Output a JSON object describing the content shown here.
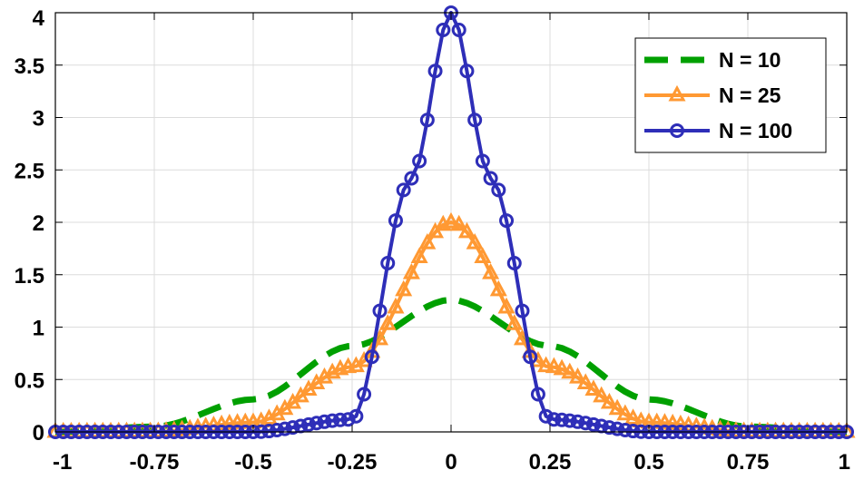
{
  "chart_data": {
    "type": "line",
    "title": "",
    "xlabel": "",
    "ylabel": "",
    "xlim": [
      -1,
      1
    ],
    "ylim": [
      0,
      4
    ],
    "xticks": [
      -1,
      -0.75,
      -0.5,
      -0.25,
      0,
      0.25,
      0.5,
      0.75,
      1
    ],
    "xtick_labels": [
      "-1",
      "-0.75",
      "-0.5",
      "-0.25",
      "0",
      "0.25",
      "0.5",
      "0.75",
      "1"
    ],
    "yticks": [
      0,
      0.5,
      1,
      1.5,
      2,
      2.5,
      3,
      3.5,
      4
    ],
    "ytick_labels": [
      "0",
      "0.5",
      "1",
      "1.5",
      "2",
      "2.5",
      "3",
      "3.5",
      "4"
    ],
    "grid": true,
    "legend_position": "top-right",
    "x_samples": {
      "start": -1,
      "end": 1,
      "count": 101
    },
    "series": [
      {
        "name": "N = 10",
        "style": "dashed",
        "marker": "none",
        "color": "#00a000",
        "points": [
          [
            -1,
            0.0
          ],
          [
            -0.75,
            0.05
          ],
          [
            -0.5,
            0.31
          ],
          [
            -0.25,
            0.82
          ],
          [
            0,
            1.26
          ],
          [
            0.25,
            0.82
          ],
          [
            0.5,
            0.31
          ],
          [
            0.75,
            0.05
          ],
          [
            1,
            0.0
          ]
        ]
      },
      {
        "name": "N = 25",
        "style": "solid",
        "marker": "triangle",
        "color": "#ff9933",
        "points": [
          [
            -1,
            0.0
          ],
          [
            -0.75,
            0.002
          ],
          [
            -0.5,
            0.09
          ],
          [
            -0.25,
            0.62
          ],
          [
            0,
            2.0
          ],
          [
            0.25,
            0.62
          ],
          [
            0.5,
            0.09
          ],
          [
            0.75,
            0.002
          ],
          [
            1,
            0.0
          ]
        ]
      },
      {
        "name": "N = 100",
        "style": "solid",
        "marker": "circle",
        "color": "#2e2eb8",
        "points": [
          [
            -1,
            0.0
          ],
          [
            -0.5,
            0.0
          ],
          [
            -0.25,
            0.12
          ],
          [
            -0.1,
            2.42
          ],
          [
            0,
            4.0
          ],
          [
            0.1,
            2.42
          ],
          [
            0.25,
            0.12
          ],
          [
            0.5,
            0.0
          ],
          [
            1,
            0.0
          ]
        ]
      }
    ]
  }
}
